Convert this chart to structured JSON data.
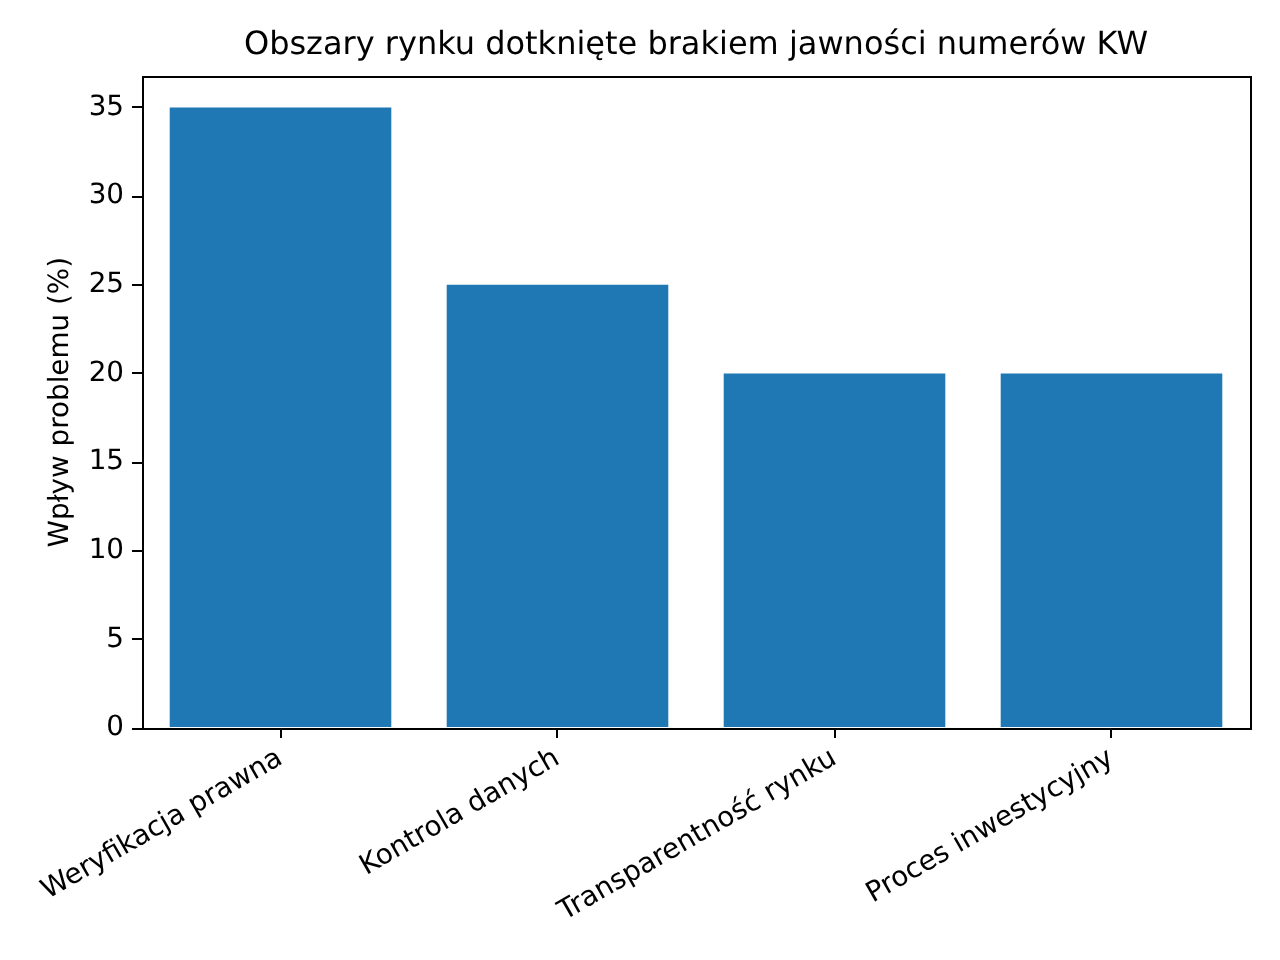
{
  "chart_data": {
    "type": "bar",
    "title": "Obszary rynku dotknięte brakiem jawności numerów KW",
    "ylabel": "Wpływ problemu (%)",
    "categories": [
      "Weryfikacja prawna",
      "Kontrola danych",
      "Transparentność rynku",
      "Proces inwestycyjny"
    ],
    "values": [
      35,
      25,
      20,
      20
    ],
    "color": "#1f77b4",
    "ylim": [
      0,
      36.75
    ],
    "yticks": [
      0,
      5,
      10,
      15,
      20,
      25,
      30,
      35
    ]
  }
}
